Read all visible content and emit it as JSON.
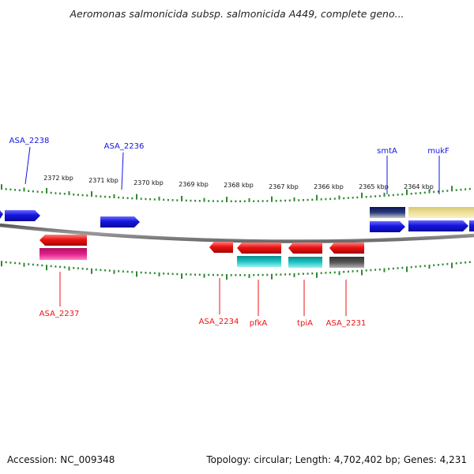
{
  "title": "Aeromonas salmonicida subsp. salmonicida A449, complete geno...",
  "footer": {
    "accession": "Accession: NC_009348",
    "topology": "Topology: circular; Length: 4,702,402 bp; Genes: 4,231"
  },
  "scale_labels": [
    "2372 kbp",
    "2371 kbp",
    "2370 kbp",
    "2369 kbp",
    "2368 kbp",
    "2367 kbp",
    "2366 kbp",
    "2365 kbp",
    "2364 kbp"
  ],
  "gene_labels": {
    "asa2238": "ASA_2238",
    "asa2236": "ASA_2236",
    "smta": "smtA",
    "mukf": "mukF",
    "asa2237": "ASA_2237",
    "asa2234": "ASA_2234",
    "pfka": "pfkA",
    "tpia": "tpiA",
    "asa2231": "ASA_2231"
  },
  "colors": {
    "forward_gene": "#1515e0",
    "reverse_gene": "#ee1111",
    "magenta_feature": "#e0208c",
    "cyan_feature": "#20c4c4",
    "gray_feature": "#555555",
    "navy_feature": "#0c1f66",
    "pale_yellow_feature": "#efe09a",
    "tick_green": "#2f8a2f",
    "backbone": "#8a8a8a"
  }
}
